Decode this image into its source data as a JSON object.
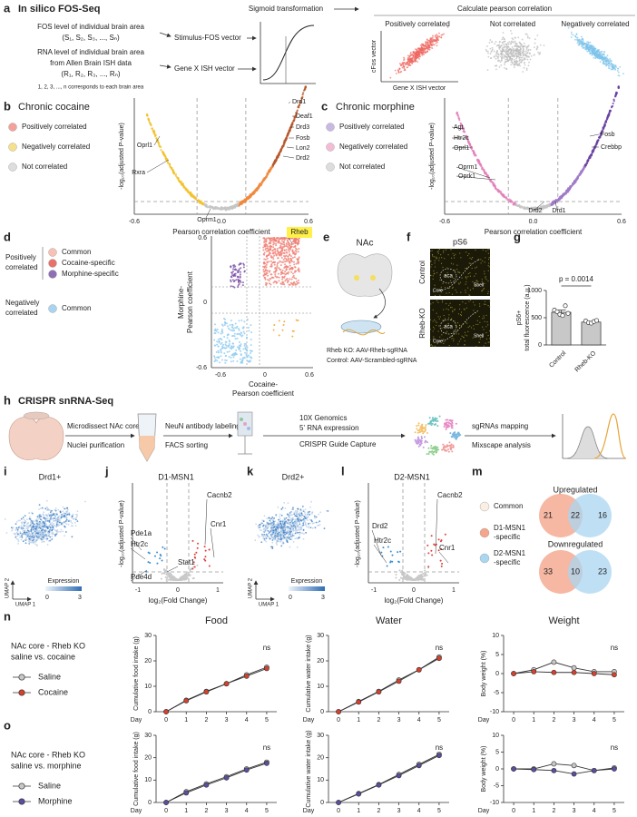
{
  "figure": {
    "a": {
      "label": "a",
      "title": "In silico FOS-Seq",
      "fos": [
        "FOS level of individual brain area",
        "(S₁, S₂, S₃, ..., Sₙ)"
      ],
      "rna": [
        "RNA level of individual brain area",
        "from Allen Brain ISH data",
        "(R₁, R₂, R₃, ..., Rₙ)"
      ],
      "note": "1, 2, 3, ..., n corresponds to each brain area",
      "stimulus_vector": "Stimulus-FOS vector",
      "gene_vector": "Gene X ISH vector",
      "sigmoid": "Sigmoid transformation",
      "pearson": "Calculate pearson correlation",
      "groups": [
        "Positively correlated",
        "Not correlated",
        "Negatively correlated"
      ],
      "y_label": "cFos vector",
      "x_label": "Gene X ISH vector"
    },
    "b": {
      "label": "b",
      "title": "Chronic cocaine",
      "legend": [
        "Positively correlated",
        "Negatively correlated",
        "Not correlated"
      ],
      "x_label": "Pearson correlation coefficient",
      "y_label": "-log₁₀(adjusted P-value)",
      "x_ticks": [
        "-0.6",
        "0.0",
        "0.6"
      ],
      "genes": [
        "Drd1",
        "Deaf1",
        "Drd3",
        "Fosb",
        "Lon2",
        "Drd2",
        "Oprl1",
        "Rxra",
        "Oprm1"
      ]
    },
    "c": {
      "label": "c",
      "title": "Chronic morphine",
      "legend": [
        "Positively correlated",
        "Negatively correlated",
        "Not correlated"
      ],
      "x_label": "Pearson correlation coefficient",
      "y_label": "-log₁₀(adjusted P-value)",
      "x_ticks": [
        "-0.6",
        "0.0",
        "0.6"
      ],
      "genes": [
        "Agt",
        "Htr2c",
        "Oprl1",
        "Oprm1",
        "Oprk1",
        "Drd2",
        "Drd1",
        "Fosb",
        "Crebbp"
      ]
    },
    "d": {
      "label": "d",
      "positive": [
        "Positively",
        "correlated"
      ],
      "negative": [
        "Negatively",
        "correlated"
      ],
      "groups": [
        "Common",
        "Cocaine-specific",
        "Morphine-specific",
        "Common"
      ],
      "y_label": [
        "Morphine-",
        "Pearson coefficient"
      ],
      "x_label": [
        "Cocaine-",
        "Pearson coefficient"
      ],
      "y_ticks": [
        "0.6",
        "0",
        "-0.6"
      ],
      "x_ticks": [
        "-0.6",
        "0",
        "0.6"
      ],
      "highlight": "Rheb"
    },
    "e": {
      "label": "e",
      "title": "NAc",
      "lines": [
        "Rheb KO: AAV-Rheb-sgRNA",
        "Control: AAV-Scrambled-sgRNA"
      ]
    },
    "f": {
      "label": "f",
      "title": "pS6",
      "rows": [
        "Control",
        "Rheb-KO"
      ],
      "region": "aca",
      "core": "Core",
      "shell": "Shell"
    },
    "g": {
      "label": "g"
    },
    "h": {
      "label": "h",
      "title": "CRISPR snRNA-Seq",
      "steps": [
        [
          "Microdissect NAc core",
          "Nuclei purification"
        ],
        [
          "NeuN antibody labeling",
          "FACS sorting"
        ],
        [
          "10X Genomics",
          "5' RNA expression",
          "CRISPR Guide Capture"
        ],
        [
          "sgRNAs mapping",
          "Mixscape analysis"
        ]
      ]
    },
    "i": {
      "label": "i",
      "title": "Drd1+",
      "y_label": "UMAP 2",
      "x_label": "UMAP 1",
      "legend": "Expression",
      "scale": [
        "0",
        "3"
      ]
    },
    "j": {
      "label": "j",
      "title": "D1-MSN1",
      "genes": [
        "Cacnb2",
        "Cnr1",
        "Pde1a",
        "Htr2c",
        "Stat1",
        "Pde4d"
      ],
      "x_label": "log₂(Fold Change)",
      "y_label": "-log₁₀(adjusted P-value)",
      "x_ticks": [
        "-1",
        "0",
        "1"
      ]
    },
    "k": {
      "label": "k",
      "title": "Drd2+",
      "y_label": "UMAP 2",
      "x_label": "UMAP 1",
      "legend": "Expression",
      "scale": [
        "0",
        "3"
      ]
    },
    "l": {
      "label": "l",
      "title": "D2-MSN1",
      "genes": [
        "Drd2",
        "Htr2c",
        "Cacnb2",
        "Cnr1"
      ],
      "x_label": "log₂(Fold Change)",
      "y_label": "-log₁₀(adjusted P-value)",
      "x_ticks": [
        "-1",
        "0",
        "1"
      ]
    },
    "m": {
      "label": "m",
      "legend": [
        [
          "Common"
        ],
        [
          "D1-MSN1",
          "-specific"
        ],
        [
          "D2-MSN1",
          "-specific"
        ]
      ],
      "up": {
        "title": "Upregulated",
        "counts": [
          "21",
          "22",
          "16"
        ]
      },
      "down": {
        "title": "Downregulated",
        "counts": [
          "33",
          "10",
          "23"
        ]
      }
    },
    "n": {
      "label": "n",
      "lines": [
        "NAc core - Rheb KO",
        "saline vs. cocaine"
      ]
    },
    "o": {
      "label": "o",
      "lines": [
        "NAc core - Rheb KO",
        "saline vs. morphine"
      ]
    }
  },
  "chart_data": [
    {
      "type": "line",
      "title": "Food",
      "x": [
        0,
        1,
        2,
        3,
        4,
        5
      ],
      "xlim": [
        -0.5,
        5.5
      ],
      "xticks": [
        0,
        1,
        2,
        3,
        4,
        5
      ],
      "x_label": "Day",
      "y_label": "Cumulative food intake (g)",
      "ylim": [
        0,
        30
      ],
      "yticks": [
        0,
        10,
        20,
        30
      ],
      "annotation": "ns",
      "series": [
        {
          "name": "Saline",
          "color": "#c8c8c8",
          "values": [
            0,
            4.5,
            8,
            11,
            14.5,
            17.5
          ]
        },
        {
          "name": "Cocaine",
          "color": "#d9402b",
          "values": [
            0,
            4.3,
            7.8,
            11,
            14,
            17
          ]
        }
      ]
    },
    {
      "type": "line",
      "title": "Water",
      "x": [
        0,
        1,
        2,
        3,
        4,
        5
      ],
      "xlim": [
        -0.5,
        5.5
      ],
      "xticks": [
        0,
        1,
        2,
        3,
        4,
        5
      ],
      "x_label": "Day",
      "y_label": "Cumulative water intake (g)",
      "ylim": [
        0,
        30
      ],
      "yticks": [
        0,
        10,
        20,
        30
      ],
      "annotation": "ns",
      "series": [
        {
          "name": "Saline",
          "color": "#c8c8c8",
          "values": [
            0,
            4,
            8,
            12.5,
            16.5,
            21.5
          ]
        },
        {
          "name": "Cocaine",
          "color": "#d9402b",
          "values": [
            0,
            3.8,
            7.8,
            12,
            16.5,
            21
          ]
        }
      ]
    },
    {
      "type": "line",
      "title": "Weight",
      "x": [
        0,
        1,
        2,
        3,
        4,
        5
      ],
      "xlim": [
        -0.5,
        5.5
      ],
      "xticks": [
        0,
        1,
        2,
        3,
        4,
        5
      ],
      "x_label": "Day",
      "y_label": "Body weight (%)",
      "ylim": [
        -10,
        10
      ],
      "yticks": [
        -10,
        -5,
        0,
        5,
        10
      ],
      "annotation": "ns",
      "series": [
        {
          "name": "Saline",
          "color": "#c8c8c8",
          "values": [
            0,
            1,
            3,
            1.5,
            0.5,
            0.5
          ]
        },
        {
          "name": "Cocaine",
          "color": "#d9402b",
          "values": [
            0,
            0.5,
            0.3,
            0.3,
            0,
            -0.3
          ]
        }
      ]
    },
    {
      "type": "line",
      "x": [
        0,
        1,
        2,
        3,
        4,
        5
      ],
      "xlim": [
        -0.5,
        5.5
      ],
      "xticks": [
        0,
        1,
        2,
        3,
        4,
        5
      ],
      "x_label": "Day",
      "y_label": "Cumulative food intake (g)",
      "ylim": [
        0,
        30
      ],
      "yticks": [
        0,
        10,
        20,
        30
      ],
      "annotation": "ns",
      "series": [
        {
          "name": "Saline",
          "color": "#c8c8c8",
          "values": [
            0,
            4.8,
            8.3,
            11.5,
            15,
            18
          ]
        },
        {
          "name": "Morphine",
          "color": "#5a4ea0",
          "values": [
            0,
            4.3,
            7.8,
            11,
            14.5,
            17.5
          ]
        }
      ]
    },
    {
      "type": "line",
      "x": [
        0,
        1,
        2,
        3,
        4,
        5
      ],
      "xlim": [
        -0.5,
        5.5
      ],
      "xticks": [
        0,
        1,
        2,
        3,
        4,
        5
      ],
      "x_label": "Day",
      "y_label": "Cumulative water intake (g)",
      "ylim": [
        0,
        30
      ],
      "yticks": [
        0,
        10,
        20,
        30
      ],
      "annotation": "ns",
      "series": [
        {
          "name": "Saline",
          "color": "#c8c8c8",
          "values": [
            0,
            4,
            8,
            12.5,
            17,
            21.5
          ]
        },
        {
          "name": "Morphine",
          "color": "#5a4ea0",
          "values": [
            0,
            3.8,
            7.8,
            12,
            16.5,
            21
          ]
        }
      ]
    },
    {
      "type": "line",
      "x": [
        0,
        1,
        2,
        3,
        4,
        5
      ],
      "xlim": [
        -0.5,
        5.5
      ],
      "xticks": [
        0,
        1,
        2,
        3,
        4,
        5
      ],
      "x_label": "Day",
      "y_label": "Body weight (%)",
      "ylim": [
        -10,
        10
      ],
      "yticks": [
        -10,
        -5,
        0,
        5,
        10
      ],
      "annotation": "ns",
      "series": [
        {
          "name": "Saline",
          "color": "#c8c8c8",
          "values": [
            0,
            0,
            1.5,
            1,
            -0.5,
            0.3
          ]
        },
        {
          "name": "Morphine",
          "color": "#5a4ea0",
          "values": [
            0,
            -0.2,
            -0.5,
            -1.5,
            -0.5,
            0
          ]
        }
      ]
    },
    {
      "type": "bar",
      "categories": [
        "Control",
        "Rheb-KO"
      ],
      "values": [
        600,
        420
      ],
      "errors": [
        40,
        15
      ],
      "points": [
        [
          640,
          610,
          560,
          540,
          720,
          580
        ],
        [
          440,
          410,
          400,
          430,
          450
        ]
      ],
      "color": "#c8c8c8",
      "y_label": [
        "pS6+",
        "total fluorescence (a.u.)"
      ],
      "ylim": [
        0,
        1000
      ],
      "yticks": [
        0,
        500,
        1000
      ],
      "annotation": "p = 0.0014"
    }
  ]
}
